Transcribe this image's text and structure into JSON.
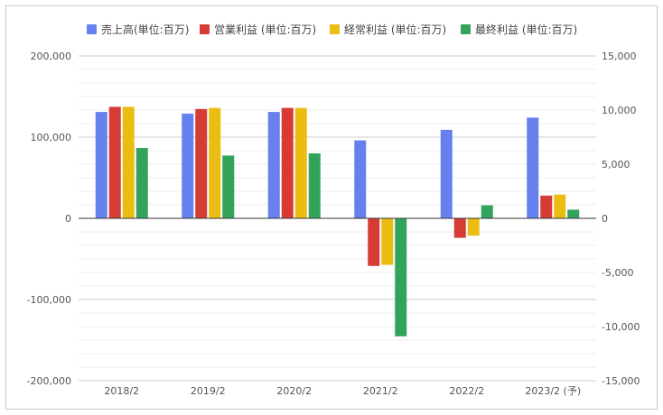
{
  "chart_data": {
    "type": "bar",
    "title": "",
    "categories": [
      "2018/2",
      "2019/2",
      "2020/2",
      "2021/2",
      "2022/2",
      "2023/2 (予)"
    ],
    "series": [
      {
        "name": "売上高(単位:百万)",
        "axis": "left",
        "color": "#6680ee",
        "values": [
          131000,
          129000,
          131000,
          96000,
          109000,
          124000
        ]
      },
      {
        "name": "営業利益 (単位:百万)",
        "axis": "right",
        "color": "#d63c35",
        "values": [
          10300,
          10100,
          10200,
          -4400,
          -1800,
          2100
        ]
      },
      {
        "name": "経常利益 (単位:百万)",
        "axis": "right",
        "color": "#ebbd13",
        "values": [
          10300,
          10200,
          10200,
          -4300,
          -1600,
          2200
        ]
      },
      {
        "name": "最終利益 (単位:百万)",
        "axis": "right",
        "color": "#33a35c",
        "values": [
          6500,
          5800,
          6000,
          -10900,
          1200,
          800
        ]
      }
    ],
    "y_left": {
      "ylim": [
        -200000,
        200000
      ],
      "ticks": [
        200000,
        100000,
        0,
        -100000,
        -200000
      ],
      "tick_labels": [
        "200,000",
        "100,000",
        "0",
        "-100,000",
        "-200,000"
      ]
    },
    "y_right": {
      "ylim": [
        -15000,
        15000
      ],
      "ticks": [
        15000,
        10000,
        5000,
        0,
        -5000,
        -10000,
        -15000
      ],
      "tick_labels": [
        "15,000",
        "10,000",
        "5,000",
        "0",
        "-5,000",
        "-10,000",
        "-15,000"
      ]
    },
    "grid": true,
    "legend_position": "top-center"
  }
}
